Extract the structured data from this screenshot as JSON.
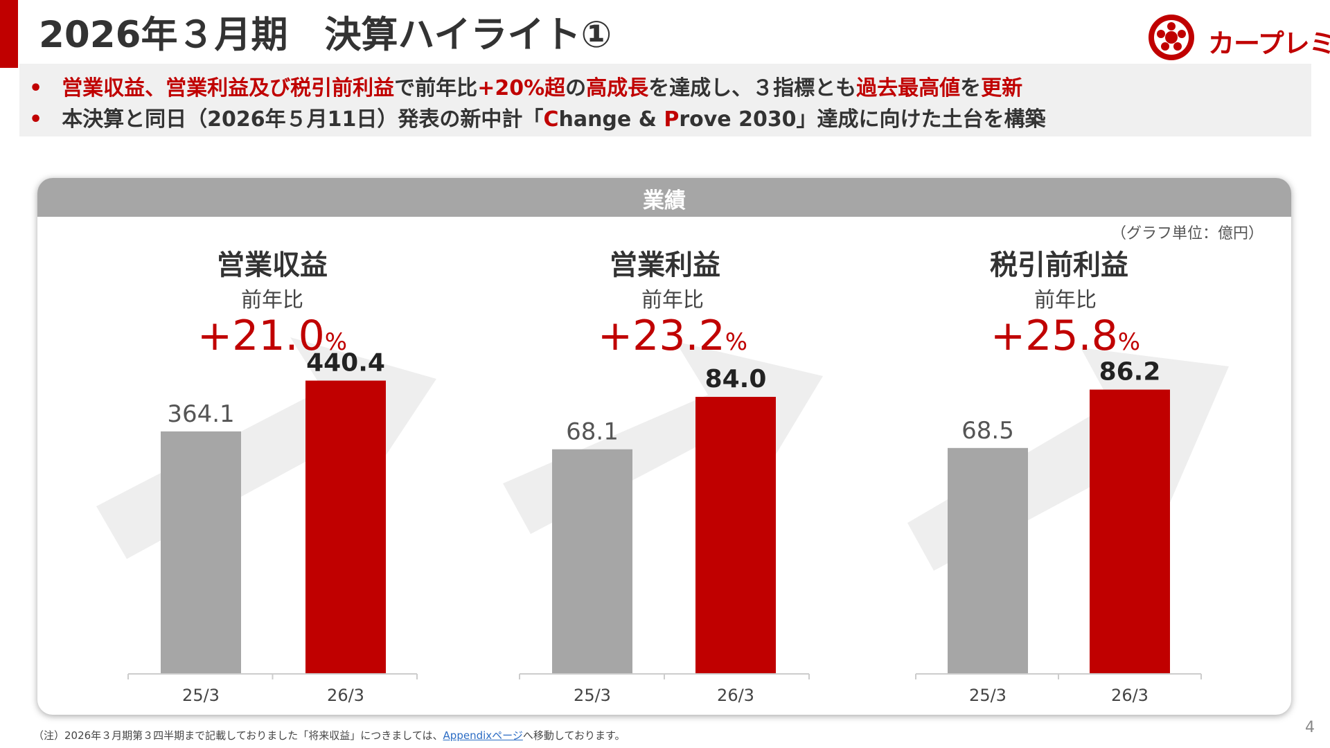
{
  "title": "2026年３月期　決算ハイライト①",
  "logo": {
    "text": "カープレミア",
    "icon": "flower-logo-icon"
  },
  "bullets": [
    {
      "parts": [
        {
          "text": "営業収益、営業利益及び税引前利益",
          "red": true
        },
        {
          "text": "で前年比",
          "red": false
        },
        {
          "text": "+20%超",
          "red": true
        },
        {
          "text": "の",
          "red": false
        },
        {
          "text": "高成長",
          "red": true
        },
        {
          "text": "を達成し、３指標とも",
          "red": false
        },
        {
          "text": "過去最高値",
          "red": true
        },
        {
          "text": "を",
          "red": false
        },
        {
          "text": "更新",
          "red": true
        }
      ]
    },
    {
      "parts": [
        {
          "text": "本決算と同日（2026年５月11日）発表の新中計「",
          "red": false
        },
        {
          "text": "C",
          "red": true
        },
        {
          "text": "hange & ",
          "red": false
        },
        {
          "text": "P",
          "red": true
        },
        {
          "text": "rove 2030」達成に向けた土台を構築",
          "red": false
        }
      ]
    }
  ],
  "panel": {
    "header": "業績",
    "unit_note": "（グラフ単位：億円）"
  },
  "metrics": [
    {
      "title": "営業収益",
      "sub": "前年比",
      "growth": "+21.0",
      "pct": "%"
    },
    {
      "title": "営業利益",
      "sub": "前年比",
      "growth": "+23.2",
      "pct": "%"
    },
    {
      "title": "税引前利益",
      "sub": "前年比",
      "growth": "+25.8",
      "pct": "%"
    }
  ],
  "colors": {
    "accent": "#c00000",
    "prior_bar": "#a6a6a6",
    "arrow": "#eeeeee"
  },
  "chart_data": [
    {
      "type": "bar",
      "title": "営業収益",
      "categories": [
        "25/3",
        "26/3"
      ],
      "values": [
        364.1,
        440.4
      ],
      "labels": [
        "364.1",
        "440.4"
      ],
      "ylim": [
        0,
        520
      ]
    },
    {
      "type": "bar",
      "title": "営業利益",
      "categories": [
        "25/3",
        "26/3"
      ],
      "values": [
        68.1,
        84.0
      ],
      "labels": [
        "68.1",
        "84.0"
      ],
      "ylim": [
        0,
        105
      ]
    },
    {
      "type": "bar",
      "title": "税引前利益",
      "categories": [
        "25/3",
        "26/3"
      ],
      "values": [
        68.5,
        86.2
      ],
      "labels": [
        "68.5",
        "86.2"
      ],
      "ylim": [
        0,
        105
      ]
    }
  ],
  "footnote": {
    "before": "（注）2026年３月期第３四半期まで記載しておりました「将来収益」につきましては、",
    "link": "Appendixページ",
    "after": "へ移動しております。"
  },
  "page_number": "4"
}
